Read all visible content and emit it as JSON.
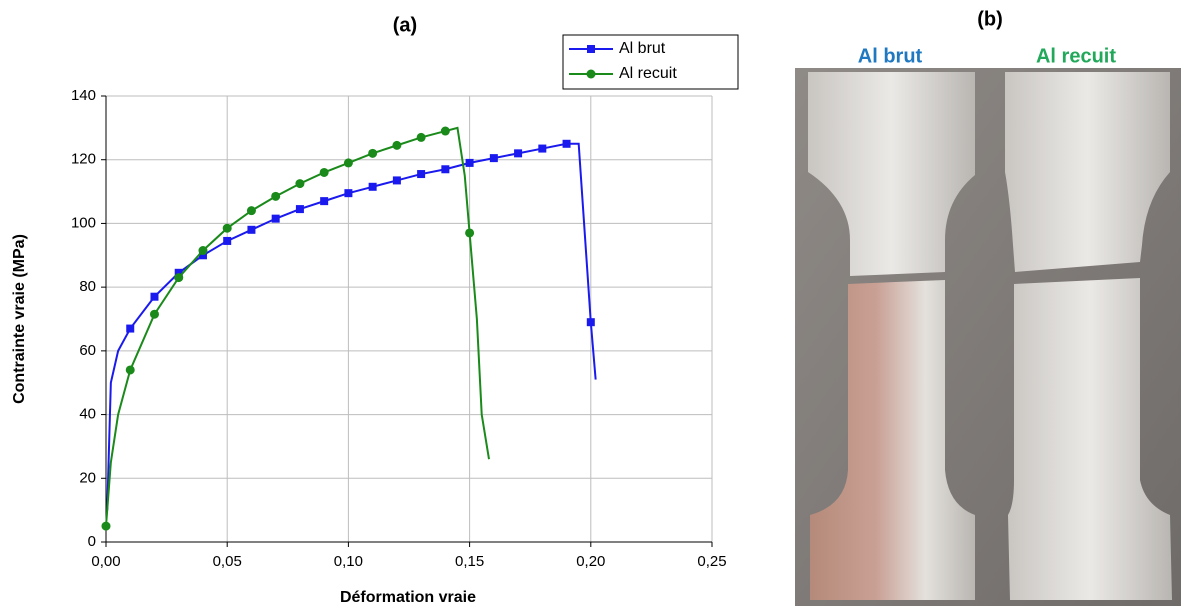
{
  "chart_data": {
    "type": "line",
    "title": "(a)",
    "x_label": "Déformation vraie",
    "y_label": "Contrainte vraie (MPa)",
    "xlim": [
      0,
      0.25
    ],
    "ylim": [
      0,
      140
    ],
    "xticks": [
      {
        "value": 0,
        "label": "0,00"
      },
      {
        "value": 0.05,
        "label": "0,05"
      },
      {
        "value": 0.1,
        "label": "0,10"
      },
      {
        "value": 0.15,
        "label": "0,15"
      },
      {
        "value": 0.2,
        "label": "0,20"
      },
      {
        "value": 0.25,
        "label": "0,25"
      }
    ],
    "yticks": [
      0,
      20,
      40,
      60,
      80,
      100,
      120,
      140
    ],
    "grid": true,
    "legend": "top-right",
    "series": [
      {
        "name": "Al brut",
        "color": "#1a1aee",
        "marker": "square",
        "x": [
          0.0005,
          0.002,
          0.005,
          0.01,
          0.02,
          0.03,
          0.04,
          0.05,
          0.06,
          0.07,
          0.08,
          0.09,
          0.1,
          0.11,
          0.12,
          0.13,
          0.14,
          0.15,
          0.16,
          0.17,
          0.18,
          0.19,
          0.195,
          0.2,
          0.202
        ],
        "values": [
          10,
          50,
          60,
          67,
          77,
          84.5,
          90,
          94.5,
          98,
          101.5,
          104.5,
          107,
          109.5,
          111.5,
          113.5,
          115.5,
          117,
          119,
          120.5,
          122,
          123.5,
          125,
          125,
          69,
          51
        ]
      },
      {
        "name": "Al recuit",
        "color": "#1a8a1a",
        "marker": "circle",
        "x": [
          0,
          0.002,
          0.005,
          0.01,
          0.02,
          0.03,
          0.04,
          0.05,
          0.06,
          0.07,
          0.08,
          0.09,
          0.1,
          0.11,
          0.12,
          0.13,
          0.14,
          0.145,
          0.148,
          0.15,
          0.153,
          0.155,
          0.158
        ],
        "values": [
          5,
          25,
          40,
          54,
          71.5,
          83,
          91.5,
          98.5,
          104,
          108.5,
          112.5,
          116,
          119,
          122,
          124.5,
          127,
          129,
          130,
          115,
          97,
          70,
          40,
          26
        ]
      }
    ]
  },
  "photo": {
    "title": "(b)",
    "labels": [
      "Al brut",
      "Al recuit"
    ]
  }
}
